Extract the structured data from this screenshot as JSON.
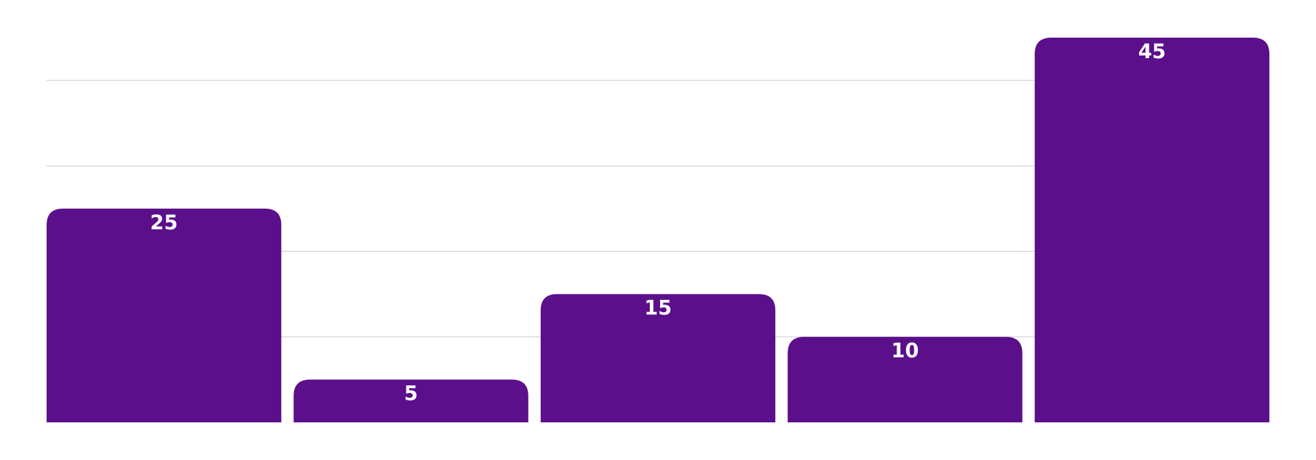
{
  "chart_data": {
    "type": "bar",
    "categories": [
      "",
      "",
      "",
      "",
      ""
    ],
    "values": [
      25,
      5,
      15,
      10,
      45
    ],
    "title": "",
    "xlabel": "",
    "ylabel": "",
    "ylim": [
      0,
      45
    ],
    "grid": true,
    "gridlines": [
      10,
      20,
      30,
      40
    ],
    "bar_color": "#5b0f8b",
    "label_color": "#ffffff",
    "gridline_color": "#d9d9d9",
    "data_labels": [
      "25",
      "5",
      "15",
      "10",
      "45"
    ]
  }
}
